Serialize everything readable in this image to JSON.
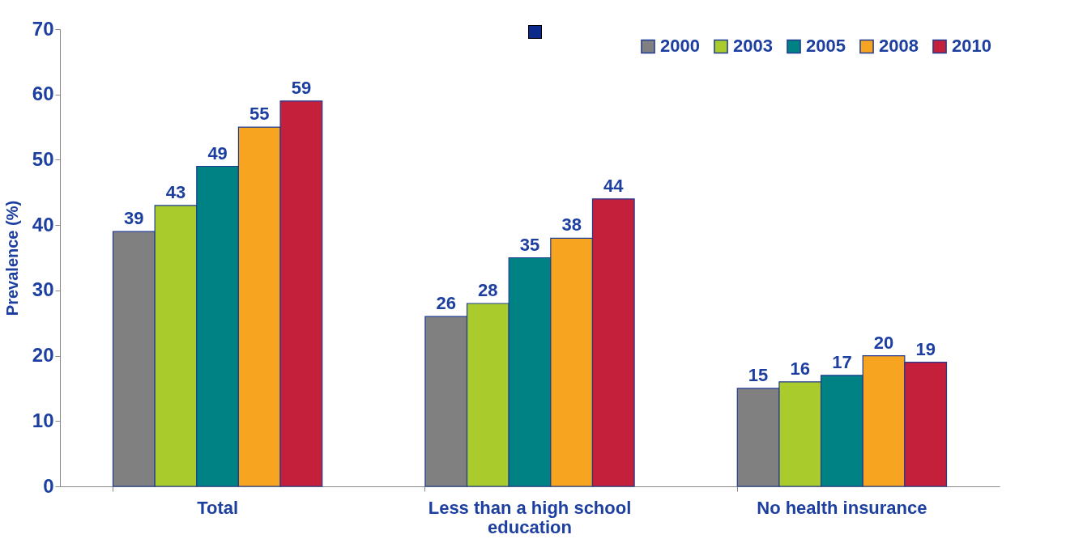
{
  "chart_data": {
    "type": "bar",
    "categories": [
      "Total",
      "Less than a high school education",
      "No health insurance"
    ],
    "ylabel": "Prevalence (%)",
    "ylim": [
      0,
      70
    ],
    "yticks": [
      0,
      10,
      20,
      30,
      40,
      50,
      60,
      70
    ],
    "grid": false,
    "legend": "top right",
    "data_labels": true,
    "series": [
      {
        "name": "2000",
        "color": "#808080",
        "values": [
          39,
          26,
          15
        ]
      },
      {
        "name": "2003",
        "color": "#a9cc2c",
        "values": [
          43,
          28,
          16
        ]
      },
      {
        "name": "2005",
        "color": "#008284",
        "values": [
          49,
          35,
          17
        ]
      },
      {
        "name": "2008",
        "color": "#f7a520",
        "values": [
          55,
          38,
          20
        ]
      },
      {
        "name": "2010",
        "color": "#c41f3b",
        "values": [
          59,
          44,
          19
        ]
      }
    ]
  }
}
